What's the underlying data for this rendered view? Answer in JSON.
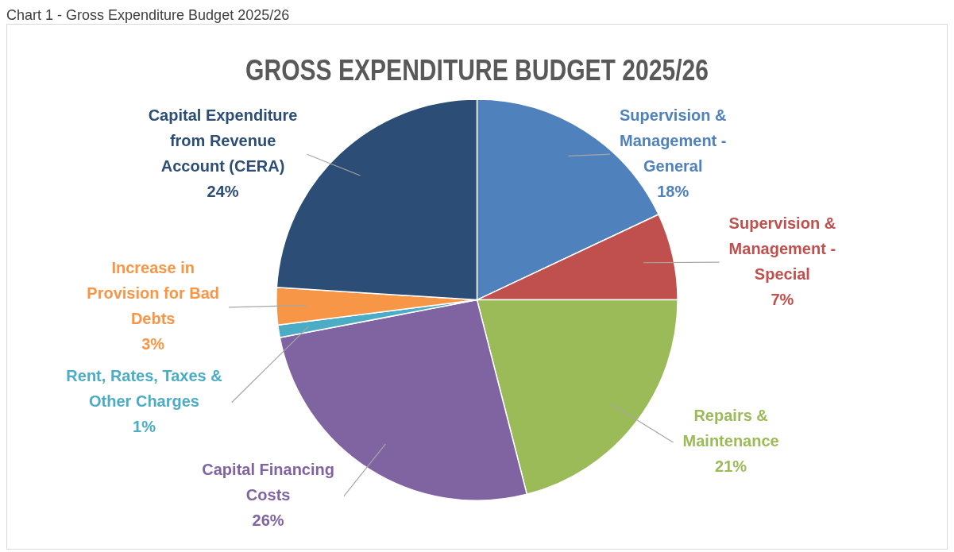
{
  "chart_data": {
    "type": "pie",
    "title": "GROSS EXPENDITURE BUDGET 2025/26",
    "annotations": [
      "Chart 1 - Gross Expenditure Budget 2025/26"
    ],
    "categories": [
      "Supervision & Management - General",
      "Supervision & Management - Special",
      "Repairs & Maintenance",
      "Capital Financing Costs",
      "Rent, Rates, Taxes & Other Charges",
      "Increase in Provision for Bad Debts",
      "Capital Expenditure from Revenue Account (CERA)"
    ],
    "values": [
      18,
      7,
      21,
      26,
      1,
      3,
      24
    ],
    "value_labels": [
      "18%",
      "7%",
      "21%",
      "26%",
      "1%",
      "3%",
      "24%"
    ],
    "colors": [
      "#4f81bd",
      "#c0504d",
      "#9bbb59",
      "#8064a2",
      "#4bacc6",
      "#f79646",
      "#2c4d75"
    ],
    "legend": false
  }
}
